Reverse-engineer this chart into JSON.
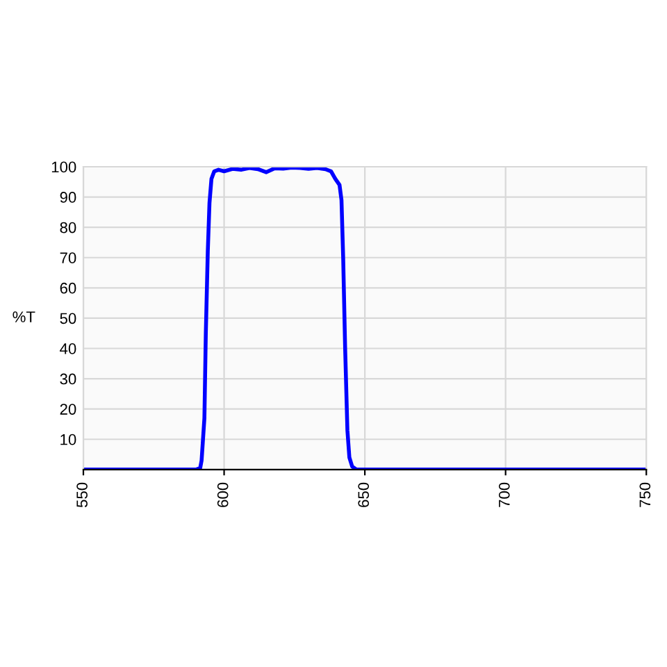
{
  "chart_data": {
    "type": "line",
    "ylabel": "%T",
    "x": [
      550,
      590,
      591.5,
      592,
      593,
      593.5,
      594.2,
      594.8,
      595.5,
      596.5,
      598,
      600,
      603,
      606,
      609,
      612,
      615,
      618,
      621,
      624,
      627,
      630,
      633,
      636,
      638,
      639.5,
      641,
      641.7,
      642.3,
      643,
      643.8,
      644.5,
      645.5,
      647,
      750
    ],
    "series": [
      {
        "color": "#0000ff",
        "values": [
          0,
          0,
          0.5,
          3,
          17,
          45,
          72,
          88,
          96,
          98.5,
          99,
          98.5,
          99.3,
          99,
          99.6,
          99.2,
          98.2,
          99.5,
          99.4,
          99.7,
          99.6,
          99.3,
          99.6,
          99.2,
          98.5,
          96,
          94,
          89,
          70,
          40,
          13,
          4,
          1,
          0,
          0
        ]
      }
    ],
    "xlim": [
      550,
      750
    ],
    "xticks": [
      550,
      600,
      650,
      700,
      750
    ],
    "ylim": [
      0,
      100
    ],
    "yticks": [
      10,
      20,
      30,
      40,
      50,
      60,
      70,
      80,
      90,
      100
    ],
    "grid": true,
    "legend": false,
    "marker": "none",
    "line_style": "solid"
  }
}
